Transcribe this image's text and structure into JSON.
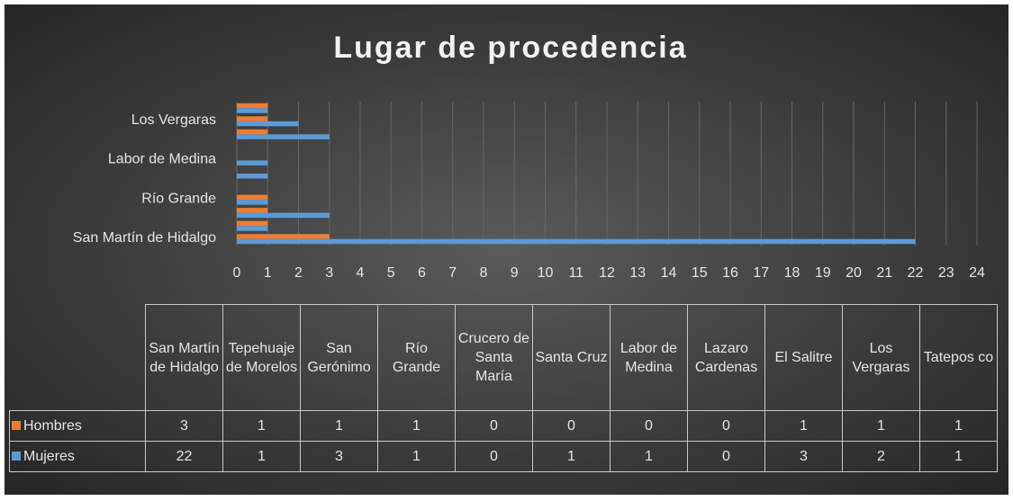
{
  "chart_data": {
    "type": "barh",
    "title": "Lugar de procedencia",
    "categories": [
      "San Martín de Hidalgo",
      "Tepehuaje de Morelos",
      "San Gerónimo",
      "Río Grande",
      "Crucero de Santa María",
      "Santa Cruz",
      "Labor de Medina",
      "Lazaro Cardenas",
      "El Salitre",
      "Los Vergaras",
      "Tatepos co"
    ],
    "axis_label_indices": [
      0,
      3,
      6,
      9
    ],
    "series": [
      {
        "name": "Hombres",
        "color": "#ed7d31",
        "values": [
          3,
          1,
          1,
          1,
          0,
          0,
          0,
          0,
          1,
          1,
          1
        ]
      },
      {
        "name": "Mujeres",
        "color": "#5b9bd5",
        "values": [
          22,
          1,
          3,
          1,
          0,
          1,
          1,
          0,
          3,
          2,
          1
        ]
      }
    ],
    "xlim": [
      0,
      24
    ],
    "xticks": [
      0,
      1,
      2,
      3,
      4,
      5,
      6,
      7,
      8,
      9,
      10,
      11,
      12,
      13,
      14,
      15,
      16,
      17,
      18,
      19,
      20,
      21,
      22,
      23,
      24
    ],
    "grid": true,
    "data_table": true
  }
}
